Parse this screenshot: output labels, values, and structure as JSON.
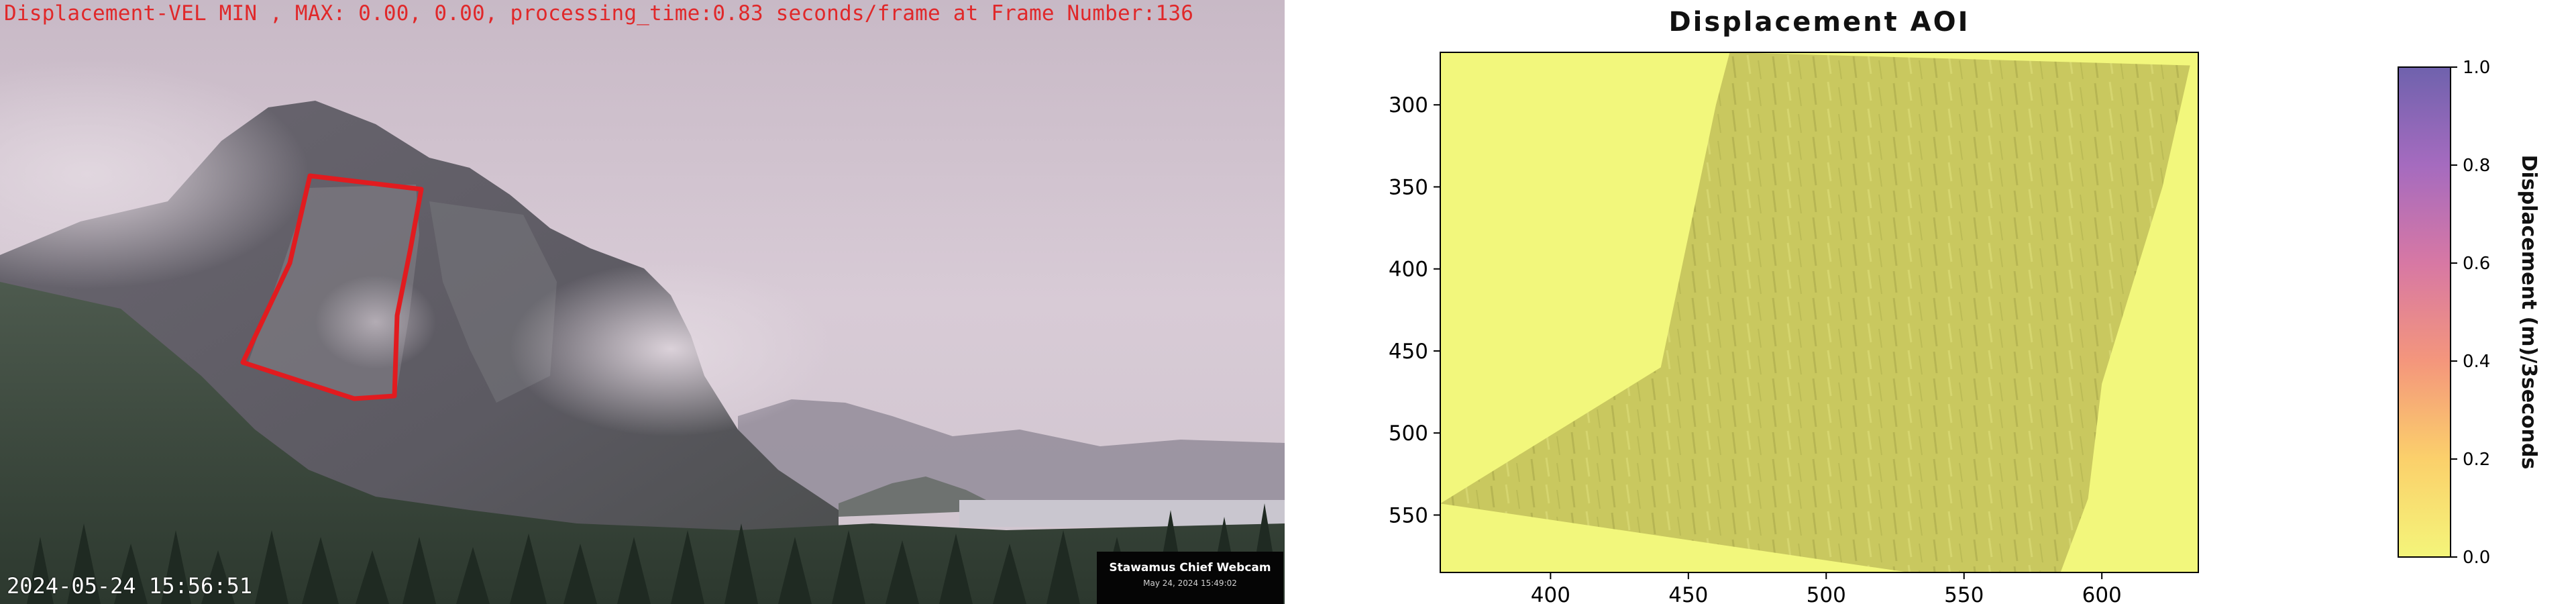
{
  "left_panel": {
    "overlay_title": "Displacement-VEL MIN , MAX: 0.00, 0.00, processing_time:0.83 seconds/frame at Frame Number:136",
    "timestamp": "2024-05-24 15:56:51",
    "badge_title": "Stawamus Chief Webcam",
    "badge_date": "May 24, 2024 15:49:02",
    "aoi_color": "#e11b1f"
  },
  "chart_data": {
    "type": "heatmap",
    "title": "Displacement AOI",
    "xlabel": "",
    "ylabel": "",
    "x_ticks": [
      400,
      450,
      500,
      550,
      600
    ],
    "y_ticks": [
      300,
      350,
      400,
      450,
      500,
      550
    ],
    "xlim": [
      360,
      635
    ],
    "ylim": [
      585,
      268
    ],
    "values_summary": {
      "min": 0.0,
      "max": 0.0
    },
    "colorbar": {
      "label": "Displacement (m)/3seconds",
      "ticks": [
        "0.0",
        "0.2",
        "0.4",
        "0.6",
        "0.8",
        "1.0"
      ],
      "range": [
        0.0,
        1.0
      ],
      "colors": [
        "#f4f57a",
        "#fbd06b",
        "#f4967c",
        "#d778a4",
        "#a56bbf",
        "#6f62ad"
      ]
    },
    "grid": false,
    "background_color": "#f2f77c",
    "region_color": "#c9c85f"
  }
}
